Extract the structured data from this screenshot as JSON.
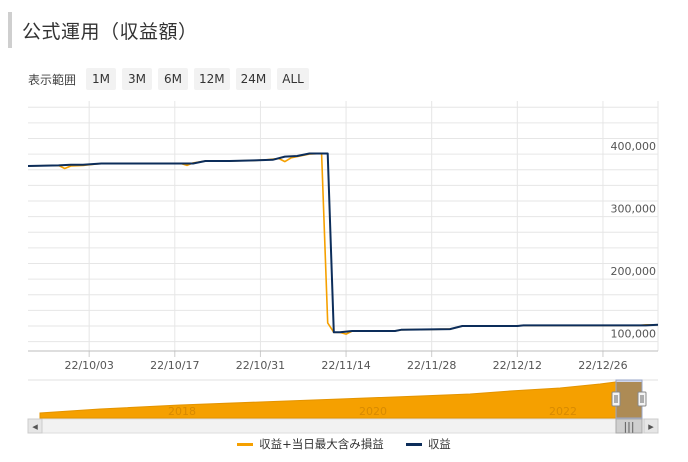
{
  "header": {
    "title": "公式運用（収益額）"
  },
  "range_selector": {
    "label": "表示範囲",
    "buttons": [
      "1M",
      "3M",
      "6M",
      "12M",
      "24M",
      "ALL"
    ]
  },
  "colors": {
    "orange": "#f5a000",
    "navy": "#0c2d5a",
    "grid": "#e6e6e6",
    "navigator_fill": "#f5a000"
  },
  "chart_data": {
    "type": "line",
    "title": "公式運用（収益額）",
    "xlabel": "",
    "ylabel": "",
    "x_tick_labels": [
      "22/10/03",
      "22/10/17",
      "22/10/31",
      "22/11/14",
      "22/11/28",
      "22/12/12",
      "22/12/26"
    ],
    "y_tick_labels": [
      "100,000",
      "200,000",
      "300,000",
      "400,000"
    ],
    "x_range": [
      "2022-09-23",
      "2023-01-04"
    ],
    "ylim": [
      85000,
      485000
    ],
    "grid": true,
    "legend_position": "bottom-center",
    "series": [
      {
        "name": "収益+当日最大含み損益",
        "color": "#f5a000",
        "points": [
          [
            "2022-09-23",
            381000
          ],
          [
            "2022-09-28",
            382000
          ],
          [
            "2022-09-29",
            377000
          ],
          [
            "2022-09-30",
            381000
          ],
          [
            "2022-10-02",
            382000
          ],
          [
            "2022-10-05",
            385000
          ],
          [
            "2022-10-10",
            385000
          ],
          [
            "2022-10-15",
            385000
          ],
          [
            "2022-10-18",
            385000
          ],
          [
            "2022-10-19",
            382000
          ],
          [
            "2022-10-20",
            386000
          ],
          [
            "2022-10-22",
            389000
          ],
          [
            "2022-10-26",
            389000
          ],
          [
            "2022-10-30",
            390000
          ],
          [
            "2022-11-01",
            391000
          ],
          [
            "2022-11-03",
            393000
          ],
          [
            "2022-11-04",
            388000
          ],
          [
            "2022-11-05",
            394000
          ],
          [
            "2022-11-08",
            400000
          ],
          [
            "2022-11-10",
            401000
          ],
          [
            "2022-11-11",
            130000
          ],
          [
            "2022-11-12",
            115000
          ],
          [
            "2022-11-13",
            115000
          ],
          [
            "2022-11-14",
            112000
          ],
          [
            "2022-11-15",
            117000
          ],
          [
            "2022-11-22",
            117000
          ],
          [
            "2022-11-23",
            119000
          ],
          [
            "2022-12-01",
            120000
          ],
          [
            "2022-12-03",
            125000
          ],
          [
            "2022-12-12",
            125000
          ],
          [
            "2022-12-13",
            126000
          ],
          [
            "2023-01-01",
            126000
          ],
          [
            "2023-01-02",
            127000
          ],
          [
            "2023-01-04",
            127000
          ]
        ]
      },
      {
        "name": "収益",
        "color": "#0c2d5a",
        "points": [
          [
            "2022-09-23",
            381000
          ],
          [
            "2022-09-28",
            382000
          ],
          [
            "2022-09-30",
            383000
          ],
          [
            "2022-10-02",
            383000
          ],
          [
            "2022-10-05",
            385000
          ],
          [
            "2022-10-10",
            385000
          ],
          [
            "2022-10-15",
            385000
          ],
          [
            "2022-10-20",
            385000
          ],
          [
            "2022-10-22",
            389000
          ],
          [
            "2022-10-26",
            389000
          ],
          [
            "2022-10-30",
            390000
          ],
          [
            "2022-11-02",
            391000
          ],
          [
            "2022-11-04",
            396000
          ],
          [
            "2022-11-06",
            397000
          ],
          [
            "2022-11-08",
            401000
          ],
          [
            "2022-11-11",
            401000
          ],
          [
            "2022-11-12",
            115000
          ],
          [
            "2022-11-13",
            115000
          ],
          [
            "2022-11-15",
            117000
          ],
          [
            "2022-11-22",
            117000
          ],
          [
            "2022-11-23",
            119000
          ],
          [
            "2022-12-01",
            120000
          ],
          [
            "2022-12-03",
            125000
          ],
          [
            "2022-12-12",
            125000
          ],
          [
            "2022-12-13",
            126000
          ],
          [
            "2023-01-02",
            126000
          ],
          [
            "2023-01-04",
            127000
          ]
        ]
      }
    ],
    "navigator": {
      "year_labels": [
        "2018",
        "2020",
        "2022"
      ]
    }
  },
  "legend": {
    "items": [
      {
        "label": "収益+当日最大含み損益",
        "color": "#f5a000"
      },
      {
        "label": "収益",
        "color": "#0c2d5a"
      }
    ]
  },
  "scrollbar": {
    "left_arrow": "◂",
    "right_arrow": "▸",
    "thumb_grip": "|||"
  }
}
